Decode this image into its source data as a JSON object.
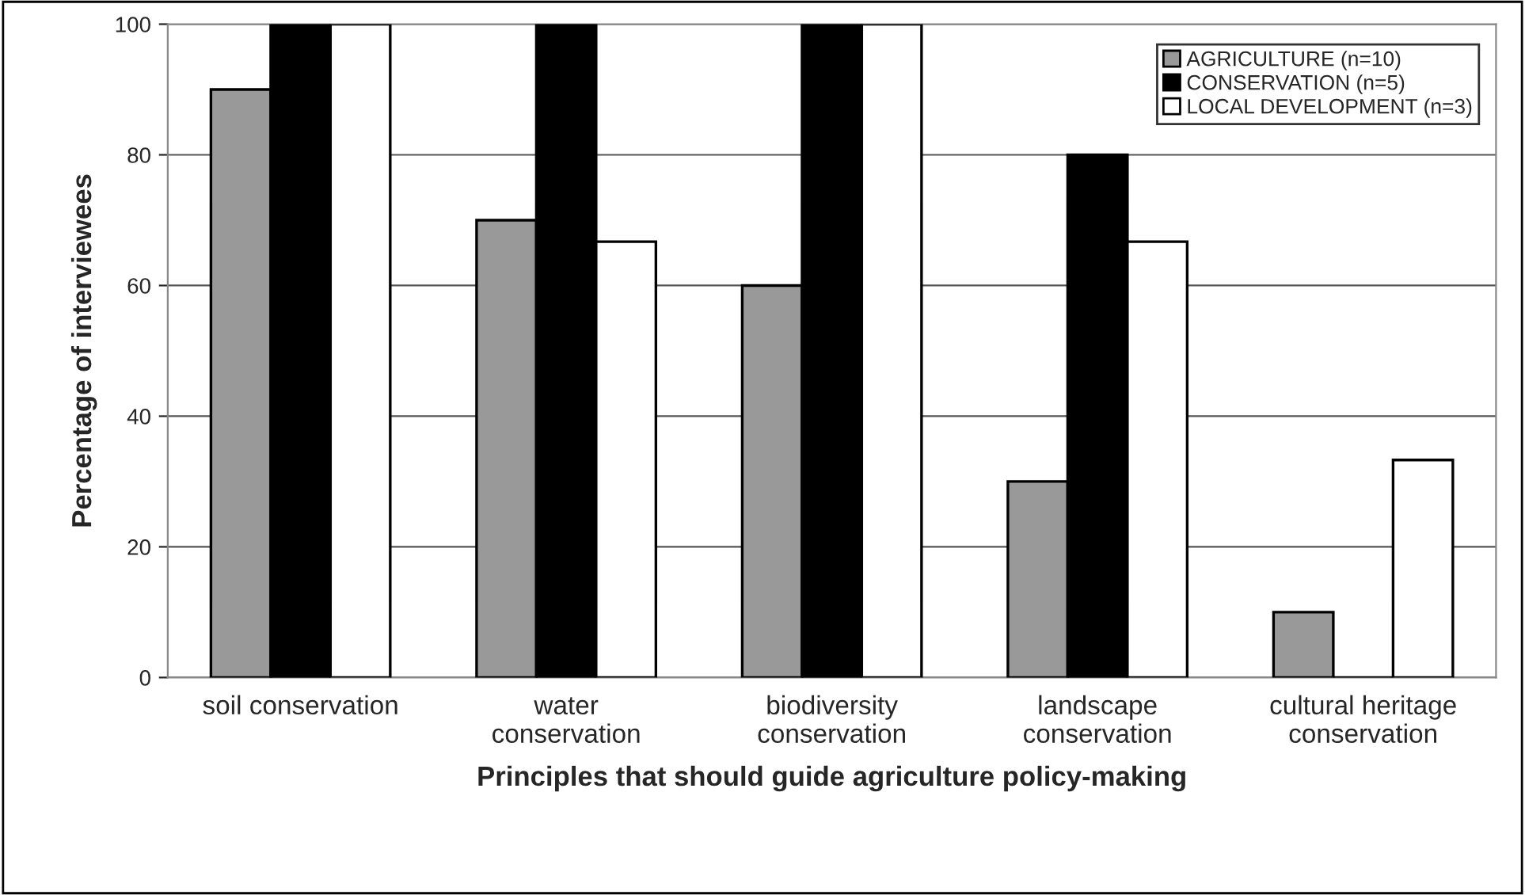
{
  "chart_data": {
    "type": "bar",
    "xlabel": "Principles that should guide agriculture policy-making",
    "ylabel": "Percentage of interviewees",
    "categories": [
      "soil conservation",
      "water\nconservation",
      "biodiversity\nconservation",
      "landscape\nconservation",
      "cultural heritage\nconservation"
    ],
    "series": [
      {
        "name": "AGRICULTURE (n=10)",
        "color": "#999999",
        "values": [
          90,
          70,
          60,
          30,
          10
        ]
      },
      {
        "name": "CONSERVATION (n=5)",
        "color": "#000000",
        "values": [
          100,
          100,
          100,
          80,
          0
        ]
      },
      {
        "name": "LOCAL DEVELOPMENT (n=3)",
        "color": "#ffffff",
        "values": [
          100,
          66.7,
          100,
          66.7,
          33.3
        ]
      }
    ],
    "ylim": [
      0,
      100
    ],
    "yticks": [
      0,
      20,
      40,
      60,
      80,
      100
    ],
    "grid": "y",
    "legend": "top right"
  }
}
